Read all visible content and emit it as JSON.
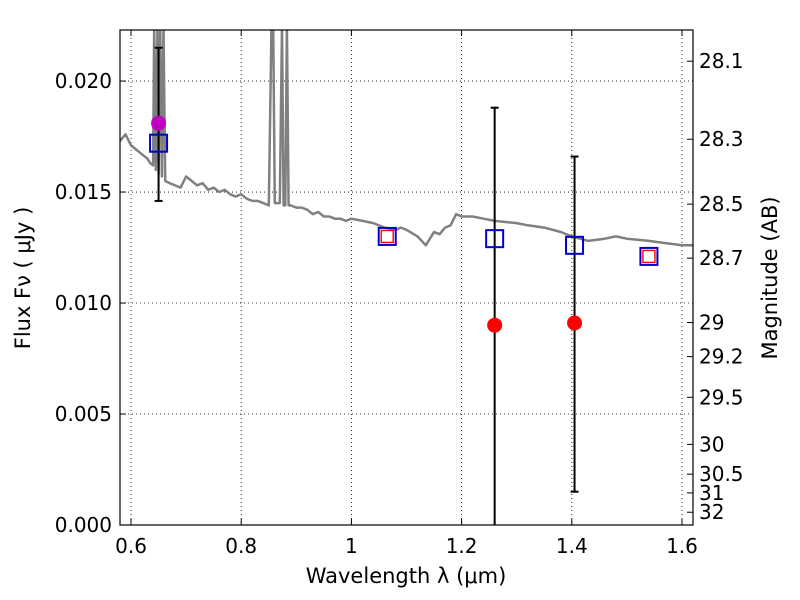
{
  "chart_data": {
    "type": "scatter",
    "title": "",
    "xlabel": "Wavelength  λ (μm)",
    "ylabel": "Flux  Fν  ( μJy )",
    "ylabel_right": "Magnitude (AB)",
    "xlim": [
      0.58,
      1.62
    ],
    "ylim": [
      0.0,
      0.0223
    ],
    "grid": true,
    "x_ticks": [
      {
        "value": 0.6,
        "label": "0.6"
      },
      {
        "value": 0.8,
        "label": "0.8"
      },
      {
        "value": 1.0,
        "label": "1"
      },
      {
        "value": 1.2,
        "label": "1.2"
      },
      {
        "value": 1.4,
        "label": "1.4"
      },
      {
        "value": 1.6,
        "label": "1.6"
      }
    ],
    "y_ticks": [
      {
        "value": 0.0,
        "label": "0.000"
      },
      {
        "value": 0.005,
        "label": "0.005"
      },
      {
        "value": 0.01,
        "label": "0.010"
      },
      {
        "value": 0.015,
        "label": "0.015"
      },
      {
        "value": 0.02,
        "label": "0.020"
      }
    ],
    "right_ticks": [
      {
        "value": 28.1,
        "label": "28.1"
      },
      {
        "value": 28.3,
        "label": "28.3"
      },
      {
        "value": 28.5,
        "label": "28.5"
      },
      {
        "value": 28.7,
        "label": "28.7"
      },
      {
        "value": 29.0,
        "label": "29"
      },
      {
        "value": 29.2,
        "label": "29.2"
      },
      {
        "value": 29.5,
        "label": "29.5"
      },
      {
        "value": 30.0,
        "label": "30"
      },
      {
        "value": 30.5,
        "label": "30.5"
      },
      {
        "value": 31.0,
        "label": "31"
      },
      {
        "value": 32.0,
        "label": "32"
      }
    ],
    "model_spectrum": {
      "color": "#808080",
      "points": [
        [
          0.58,
          0.0173
        ],
        [
          0.59,
          0.0176
        ],
        [
          0.6,
          0.0171
        ],
        [
          0.61,
          0.0169
        ],
        [
          0.62,
          0.0167
        ],
        [
          0.63,
          0.0165
        ],
        [
          0.635,
          0.0163
        ],
        [
          0.64,
          0.0162
        ],
        [
          0.642,
          0.0225
        ],
        [
          0.645,
          0.016
        ],
        [
          0.648,
          0.0225
        ],
        [
          0.65,
          0.0158
        ],
        [
          0.653,
          0.0225
        ],
        [
          0.656,
          0.0157
        ],
        [
          0.659,
          0.0225
        ],
        [
          0.662,
          0.0155
        ],
        [
          0.67,
          0.0154
        ],
        [
          0.68,
          0.0153
        ],
        [
          0.69,
          0.0152
        ],
        [
          0.7,
          0.0157
        ],
        [
          0.71,
          0.0155
        ],
        [
          0.72,
          0.0153
        ],
        [
          0.73,
          0.0154
        ],
        [
          0.74,
          0.0151
        ],
        [
          0.75,
          0.0152
        ],
        [
          0.76,
          0.015
        ],
        [
          0.77,
          0.0151
        ],
        [
          0.78,
          0.0149
        ],
        [
          0.79,
          0.0148
        ],
        [
          0.8,
          0.0149
        ],
        [
          0.81,
          0.0147
        ],
        [
          0.82,
          0.0146
        ],
        [
          0.83,
          0.0146
        ],
        [
          0.84,
          0.0145
        ],
        [
          0.85,
          0.0144
        ],
        [
          0.855,
          0.0225
        ],
        [
          0.858,
          0.0225
        ],
        [
          0.861,
          0.0145
        ],
        [
          0.87,
          0.0145
        ],
        [
          0.874,
          0.0225
        ],
        [
          0.877,
          0.0144
        ],
        [
          0.88,
          0.0144
        ],
        [
          0.883,
          0.0225
        ],
        [
          0.886,
          0.0144
        ],
        [
          0.89,
          0.0144
        ],
        [
          0.9,
          0.0143
        ],
        [
          0.91,
          0.0143
        ],
        [
          0.92,
          0.0142
        ],
        [
          0.93,
          0.014
        ],
        [
          0.94,
          0.0141
        ],
        [
          0.95,
          0.0139
        ],
        [
          0.96,
          0.0139
        ],
        [
          0.97,
          0.0138
        ],
        [
          0.98,
          0.0138
        ],
        [
          0.99,
          0.0137
        ],
        [
          1.0,
          0.0138
        ],
        [
          1.02,
          0.0137
        ],
        [
          1.04,
          0.0136
        ],
        [
          1.06,
          0.0134
        ],
        [
          1.08,
          0.0133
        ],
        [
          1.09,
          0.0134
        ],
        [
          1.1,
          0.0133
        ],
        [
          1.12,
          0.013
        ],
        [
          1.135,
          0.0126
        ],
        [
          1.15,
          0.0132
        ],
        [
          1.16,
          0.0131
        ],
        [
          1.17,
          0.0134
        ],
        [
          1.18,
          0.0135
        ],
        [
          1.19,
          0.014
        ],
        [
          1.2,
          0.0139
        ],
        [
          1.22,
          0.0139
        ],
        [
          1.24,
          0.0138
        ],
        [
          1.26,
          0.0137
        ],
        [
          1.3,
          0.0136
        ],
        [
          1.32,
          0.0135
        ],
        [
          1.35,
          0.0134
        ],
        [
          1.38,
          0.0132
        ],
        [
          1.4,
          0.013
        ],
        [
          1.43,
          0.0128
        ],
        [
          1.46,
          0.0129
        ],
        [
          1.48,
          0.013
        ],
        [
          1.5,
          0.0129
        ],
        [
          1.54,
          0.0128
        ],
        [
          1.57,
          0.0127
        ],
        [
          1.6,
          0.0126
        ],
        [
          1.62,
          0.0126
        ]
      ]
    },
    "series": [
      {
        "marker": "circle-red",
        "color": "#ff0000",
        "points": [
          {
            "x": 1.26,
            "y": 0.009
          },
          {
            "x": 1.405,
            "y": 0.0091
          }
        ]
      },
      {
        "marker": "circle-magenta",
        "color": "#bf00bf",
        "points": [
          {
            "x": 0.65,
            "y": 0.0181
          }
        ]
      },
      {
        "marker": "square-blue-open",
        "color": "#0000cc",
        "points": [
          {
            "x": 0.65,
            "y": 0.0172
          },
          {
            "x": 1.065,
            "y": 0.013
          },
          {
            "x": 1.26,
            "y": 0.0129
          },
          {
            "x": 1.405,
            "y": 0.0126
          },
          {
            "x": 1.54,
            "y": 0.0121
          }
        ]
      },
      {
        "marker": "square-red-small-open",
        "color": "#ff0000",
        "points": [
          {
            "x": 1.065,
            "y": 0.013
          },
          {
            "x": 1.54,
            "y": 0.0121
          }
        ]
      }
    ],
    "error_bars": [
      {
        "x": 0.65,
        "low": 0.0146,
        "high": 0.0215
      },
      {
        "x": 1.26,
        "low": 0.0,
        "high": 0.0188
      },
      {
        "x": 1.405,
        "low": 0.0015,
        "high": 0.0166
      }
    ]
  }
}
